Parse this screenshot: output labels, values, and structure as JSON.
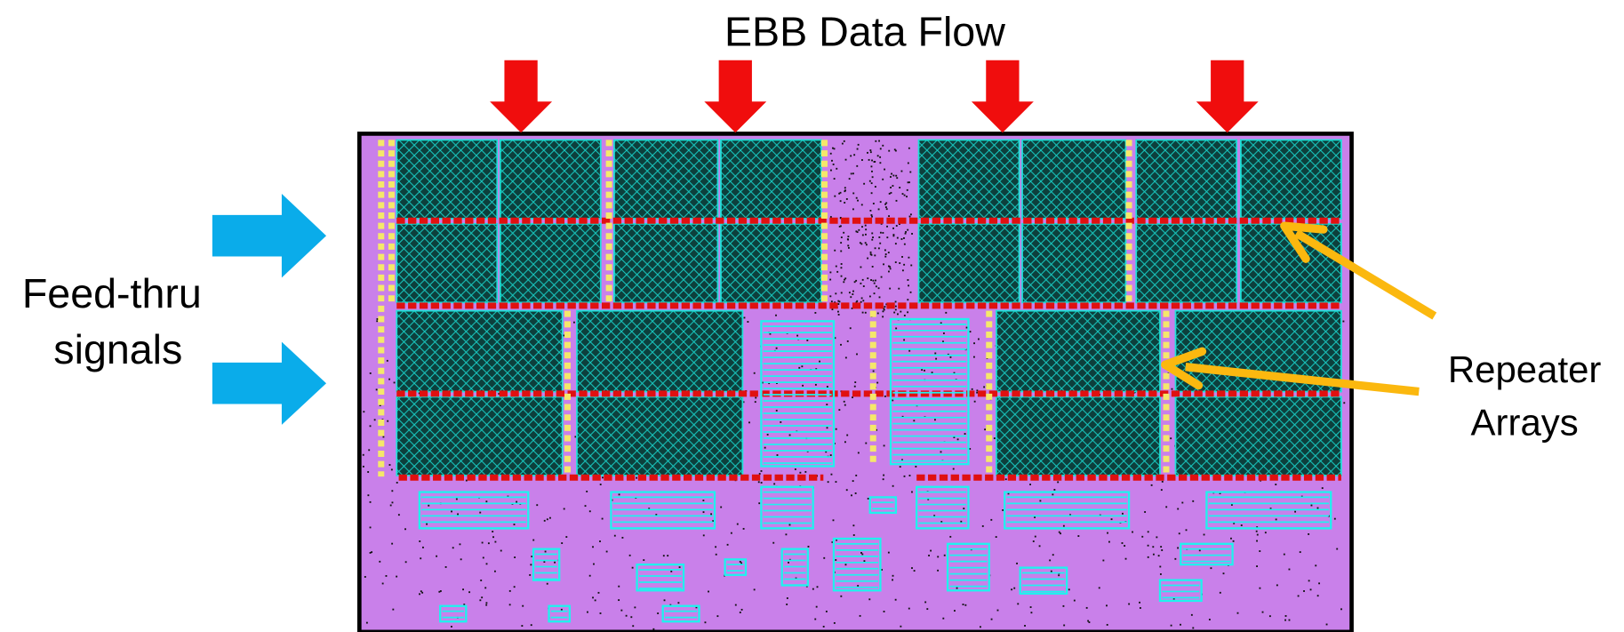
{
  "title": "EBB Data Flow",
  "labels": {
    "feed_thru": [
      "Feed-thru",
      "signals"
    ],
    "repeater": [
      "Repeater",
      "Arrays"
    ]
  }
}
